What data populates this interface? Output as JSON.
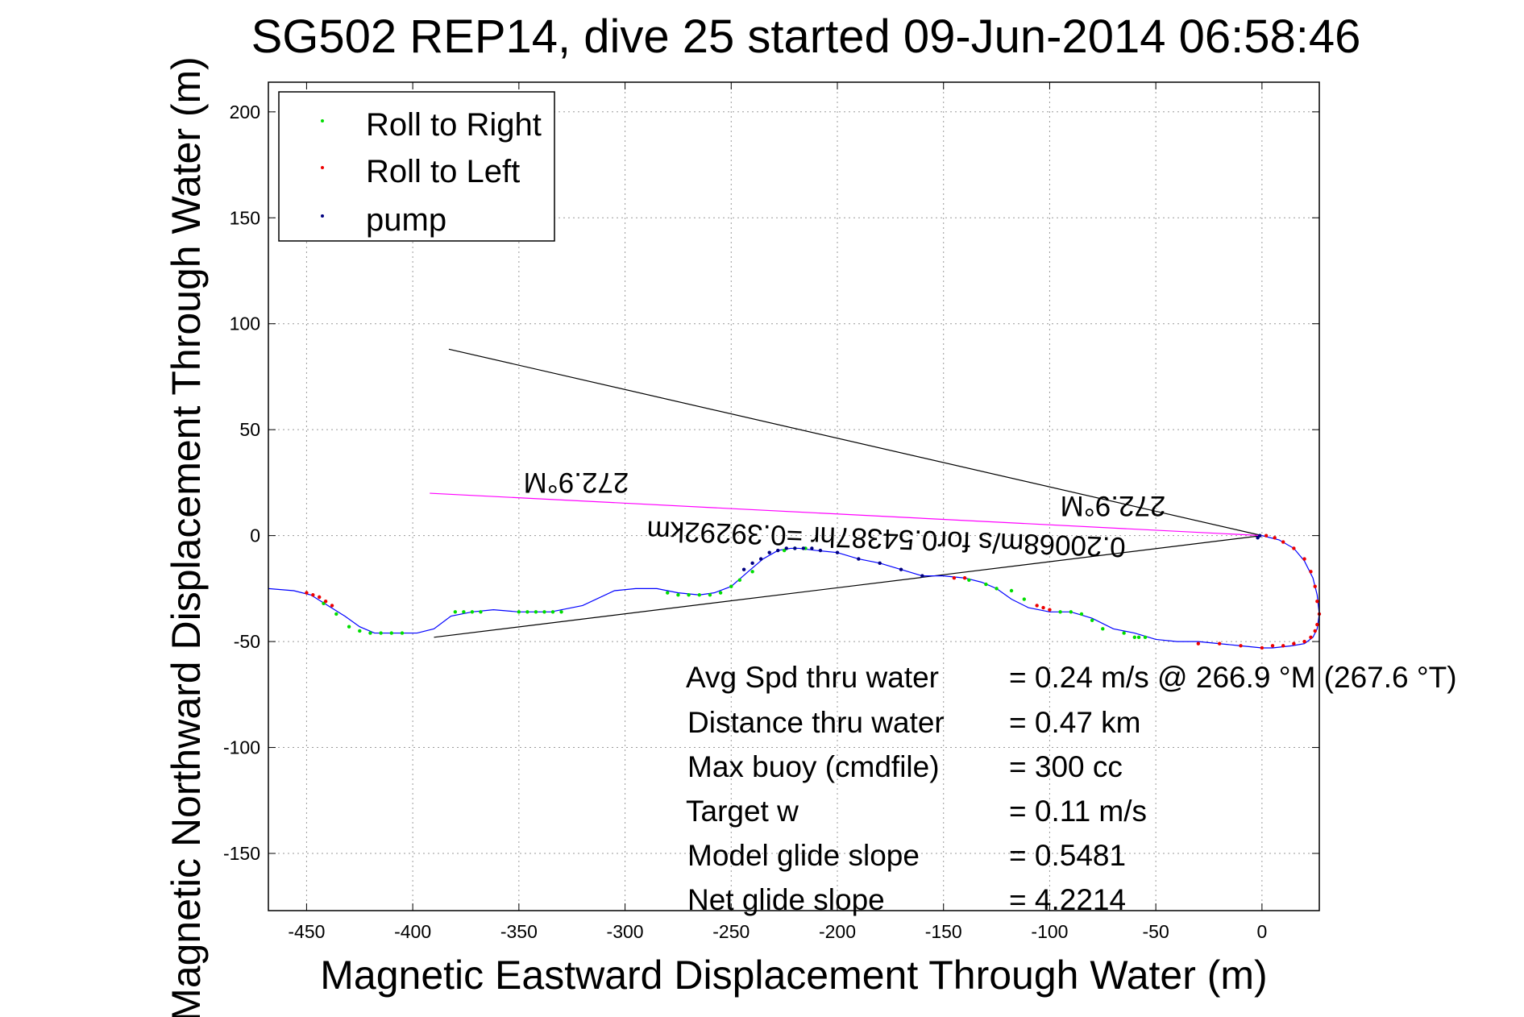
{
  "chart_data": {
    "type": "scatter",
    "title": "SG502 REP14, dive 25 started 09-Jun-2014 06:58:46",
    "xlabel": "Magnetic Eastward Displacement Through Water (m)",
    "ylabel": "Magnetic Northward Displacement Through Water (m)",
    "xlim": [
      -468,
      27
    ],
    "ylim": [
      -177,
      214
    ],
    "xticks": [
      -450,
      -400,
      -350,
      -300,
      -250,
      -200,
      -150,
      -100,
      -50,
      0
    ],
    "yticks": [
      -150,
      -100,
      -50,
      0,
      50,
      100,
      150,
      200
    ],
    "grid": true,
    "legend_position": "top-left",
    "legend": [
      {
        "label": "Roll to Right",
        "color": "#00dd00"
      },
      {
        "label": "Roll to Left",
        "color": "#ee0000"
      },
      {
        "label": "pump",
        "color": "#000080"
      }
    ],
    "track": {
      "name": "track",
      "color": "#0000ff",
      "x": [
        0,
        8,
        15,
        20,
        24,
        26,
        27,
        26,
        24,
        20,
        14,
        5,
        0,
        -10,
        -20,
        -30,
        -40,
        -50,
        -60,
        -70,
        -80,
        -90,
        -100,
        -110,
        -118,
        -125,
        -132,
        -140,
        -150,
        -160,
        -170,
        -180,
        -190,
        -200,
        -210,
        -218,
        -222,
        -228,
        -235,
        -242,
        -250,
        -258,
        -265,
        -275,
        -285,
        -295,
        -305,
        -320,
        -335,
        -350,
        -362,
        -372,
        -382,
        -390,
        -398,
        -405,
        -412,
        -418,
        -425,
        -432,
        -440,
        -448,
        -456,
        -468
      ],
      "y": [
        0,
        -2,
        -6,
        -12,
        -20,
        -28,
        -37,
        -44,
        -48,
        -51,
        -52,
        -53,
        -53,
        -52,
        -51,
        -50,
        -50,
        -49,
        -46,
        -44,
        -39,
        -36,
        -36,
        -34,
        -30,
        -25,
        -22,
        -20,
        -19,
        -19,
        -16,
        -13,
        -11,
        -8,
        -7,
        -6,
        -6,
        -7,
        -11,
        -17,
        -24,
        -27,
        -28,
        -27,
        -25,
        -25,
        -26,
        -33,
        -36,
        -36,
        -35,
        -36,
        -38,
        -44,
        -46,
        -46,
        -46,
        -46,
        -43,
        -38,
        -33,
        -28,
        -26,
        -25
      ]
    },
    "series": [
      {
        "name": "Roll to Right",
        "color": "#00dd00",
        "x": [
          -58,
          -55,
          -60,
          -65,
          -75,
          -80,
          -85,
          -90,
          -95,
          -112,
          -118,
          -125,
          -130,
          -138,
          -215,
          -220,
          -225,
          -240,
          -246,
          -250,
          -255,
          -260,
          -265,
          -270,
          -275,
          -280,
          -330,
          -334,
          -338,
          -342,
          -346,
          -350,
          -368,
          -372,
          -376,
          -380,
          -405,
          -410,
          -415,
          -420,
          -425,
          -430,
          -436,
          -442
        ],
        "y": [
          -48,
          -48,
          -48,
          -46,
          -44,
          -40,
          -37,
          -36,
          -36,
          -30,
          -26,
          -25,
          -23,
          -21,
          -6,
          -6,
          -7,
          -17,
          -21,
          -24,
          -27,
          -28,
          -28,
          -28,
          -28,
          -27,
          -36,
          -36,
          -36,
          -36,
          -36,
          -36,
          -36,
          -36,
          -36,
          -36,
          -46,
          -46,
          -46,
          -46,
          -45,
          -43,
          -37,
          -32
        ]
      },
      {
        "name": "Roll to Left",
        "color": "#ee0000",
        "x": [
          2,
          6,
          10,
          15,
          20,
          23,
          25,
          26,
          27,
          26,
          25,
          23,
          20,
          15,
          10,
          5,
          0,
          -10,
          -20,
          -30,
          -100,
          -103,
          -106,
          -140,
          -145,
          -438,
          -441,
          -444,
          -447,
          -450
        ],
        "y": [
          0,
          -1,
          -3,
          -6,
          -11,
          -17,
          -24,
          -31,
          -37,
          -42,
          -45,
          -48,
          -50,
          -51,
          -52,
          -52,
          -53,
          -52,
          -51,
          -51,
          -35,
          -34,
          -33,
          -20,
          -20,
          -33,
          -31,
          -29,
          -28,
          -27
        ]
      },
      {
        "name": "pump",
        "color": "#000080",
        "x": [
          -1,
          -2,
          -160,
          -170,
          -180,
          -190,
          -200,
          -208,
          -212,
          -216,
          -220,
          -224,
          -228,
          -232,
          -236,
          -240,
          -244
        ],
        "y": [
          0,
          -1,
          -19,
          -16,
          -13,
          -11,
          -8,
          -7,
          -6,
          -6,
          -6,
          -6,
          -7,
          -8,
          -11,
          -13,
          -16
        ]
      }
    ],
    "reference_lines": [
      {
        "color": "#000000",
        "x": [
          -383,
          0
        ],
        "y": [
          88,
          0
        ]
      },
      {
        "color": "#000000",
        "x": [
          -390,
          0
        ],
        "y": [
          -48,
          0
        ]
      },
      {
        "color": "#ff00ff",
        "x": [
          -392,
          0
        ],
        "y": [
          20,
          0
        ]
      }
    ],
    "annotations": {
      "heading_top": "272.9°M",
      "heading_right": "272.9°M",
      "speed_note": "0.20068m/s for0.54387hr =0.39292km"
    },
    "stats": [
      {
        "label": "Avg Spd thru water",
        "value": "=  0.24 m/s @ 266.9 °M (267.6 °T)"
      },
      {
        "label": "Distance thru water",
        "value": "=  0.47 km"
      },
      {
        "label": "Max buoy (cmdfile)",
        "value": "= 300 cc"
      },
      {
        "label": "Target w",
        "value": "= 0.11 m/s"
      },
      {
        "label": "Model glide slope",
        "value": "= 0.5481"
      },
      {
        "label": "Net glide slope",
        "value": "= 4.2214"
      }
    ]
  }
}
